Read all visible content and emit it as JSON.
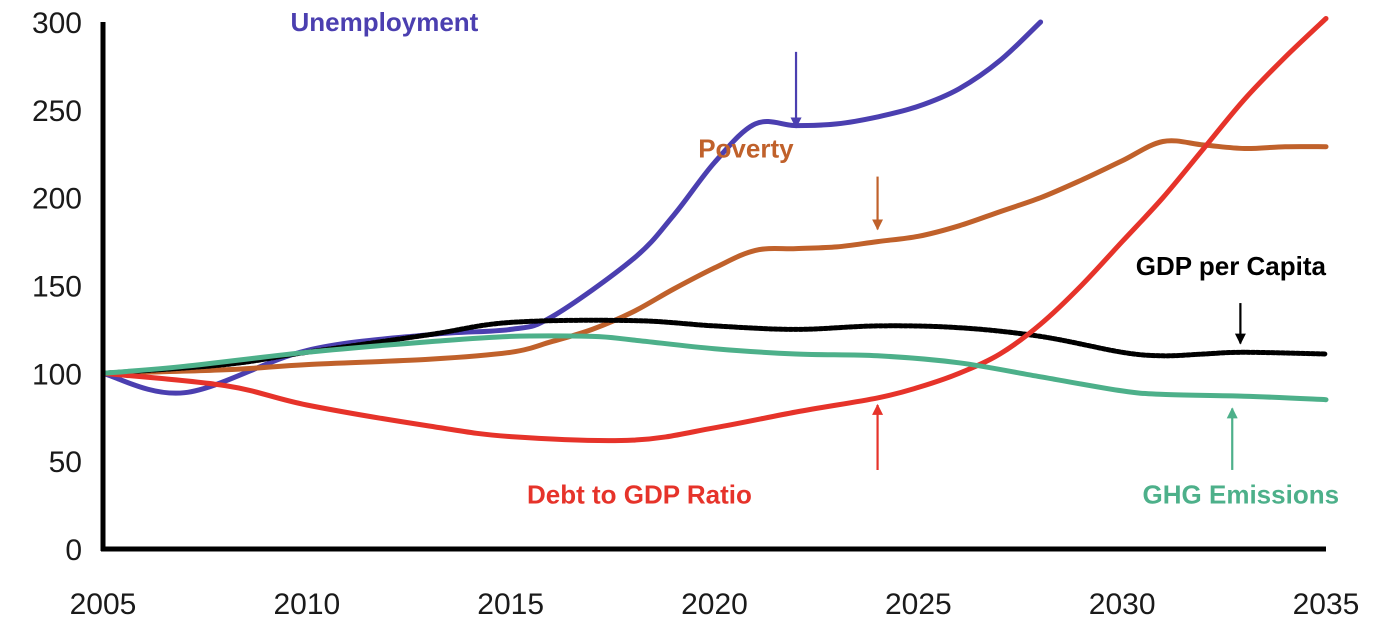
{
  "chart_data": {
    "type": "line",
    "title": "",
    "xlabel": "",
    "ylabel": "",
    "xlim": [
      2005,
      2035
    ],
    "ylim": [
      0,
      300
    ],
    "x_ticks": [
      "2005",
      "2010",
      "2015",
      "2020",
      "2025",
      "2030",
      "2035"
    ],
    "x_tick_values": [
      2005,
      2010,
      2015,
      2020,
      2025,
      2030,
      2035
    ],
    "y_ticks": [
      "0",
      "50",
      "100",
      "150",
      "200",
      "250",
      "300"
    ],
    "y_tick_values": [
      0,
      50,
      100,
      150,
      200,
      250,
      300
    ],
    "grid": false,
    "legend": "none",
    "series": [
      {
        "name": "Unemployment",
        "color": "#4b3fb0",
        "stroke_width": 5,
        "dash": "",
        "x": [
          2005,
          2007,
          2010,
          2013,
          2015,
          2016,
          2018,
          2019,
          2020,
          2021,
          2022,
          2023,
          2024,
          2025,
          2026,
          2027,
          2028
        ],
        "y": [
          100,
          89,
          113,
          122,
          125,
          132,
          165,
          190,
          220,
          242,
          241,
          242,
          246,
          252,
          262,
          278,
          300
        ]
      },
      {
        "name": "Poverty",
        "color": "#c0612b",
        "stroke_width": 5,
        "dash": "",
        "x": [
          2005,
          2008,
          2010,
          2013,
          2015,
          2016,
          2017,
          2018,
          2019,
          2020,
          2021,
          2022,
          2023,
          2024,
          2025,
          2026,
          2027,
          2028,
          2029,
          2030,
          2031,
          2032,
          2033,
          2034,
          2035
        ],
        "y": [
          100,
          102,
          105,
          108,
          112,
          118,
          125,
          135,
          148,
          160,
          170,
          171,
          172,
          175,
          178,
          184,
          192,
          200,
          210,
          221,
          232,
          230,
          228,
          229,
          229
        ]
      },
      {
        "name": "GDP per Capita",
        "color": "#000000",
        "stroke_width": 5,
        "dash": "3 2",
        "x": [
          2005,
          2008,
          2010,
          2013,
          2015,
          2018,
          2020,
          2022,
          2024,
          2026,
          2028,
          2030,
          2031,
          2032,
          2033,
          2035
        ],
        "y": [
          100,
          105,
          112,
          122,
          129,
          130,
          127,
          125,
          127,
          126,
          121,
          112,
          110,
          111,
          112,
          111
        ]
      },
      {
        "name": "Debt to GDP Ratio",
        "color": "#e6332a",
        "stroke_width": 5,
        "dash": "",
        "x": [
          2005,
          2008,
          2010,
          2013,
          2015,
          2018,
          2020,
          2022,
          2024,
          2025,
          2026,
          2027,
          2028,
          2029,
          2030,
          2031,
          2032,
          2033,
          2034,
          2035
        ],
        "y": [
          100,
          93,
          82,
          70,
          64,
          62,
          69,
          78,
          86,
          92,
          100,
          111,
          128,
          150,
          175,
          200,
          228,
          256,
          280,
          302
        ]
      },
      {
        "name": "GHG Emissions",
        "color": "#4db08a",
        "stroke_width": 5,
        "dash": "",
        "x": [
          2005,
          2007,
          2010,
          2013,
          2015,
          2017,
          2018,
          2020,
          2022,
          2024,
          2026,
          2028,
          2030,
          2031,
          2033,
          2035
        ],
        "y": [
          100,
          104,
          112,
          118,
          121,
          121,
          119,
          114,
          111,
          110,
          106,
          98,
          90,
          88,
          87,
          85
        ]
      }
    ],
    "annotations": [
      {
        "text": "Unemployment",
        "color": "#4b3fb0",
        "text_x": 2009.6,
        "text_y": 295,
        "anchor": "start",
        "arrow_from": [
          2022.0,
          283
        ],
        "arrow_to": [
          2022.0,
          240
        ]
      },
      {
        "text": "Poverty",
        "color": "#c0612b",
        "text_x": 2019.6,
        "text_y": 223,
        "anchor": "start",
        "arrow_from": [
          2024.0,
          212
        ],
        "arrow_to": [
          2024.0,
          182
        ]
      },
      {
        "text": "GDP per Capita",
        "color": "#000000",
        "text_x": 2035.0,
        "text_y": 156,
        "anchor": "end",
        "arrow_from": [
          2032.9,
          140
        ],
        "arrow_to": [
          2032.9,
          117
        ]
      },
      {
        "text": "Debt to GDP Ratio",
        "color": "#e6332a",
        "text_x": 2015.4,
        "text_y": 26,
        "anchor": "start",
        "arrow_from": [
          2024.0,
          45
        ],
        "arrow_to": [
          2024.0,
          82
        ]
      },
      {
        "text": "GHG Emissions",
        "color": "#4db08a",
        "text_x": 2030.5,
        "text_y": 26,
        "anchor": "start",
        "arrow_from": [
          2032.7,
          45
        ],
        "arrow_to": [
          2032.7,
          80
        ]
      }
    ]
  }
}
